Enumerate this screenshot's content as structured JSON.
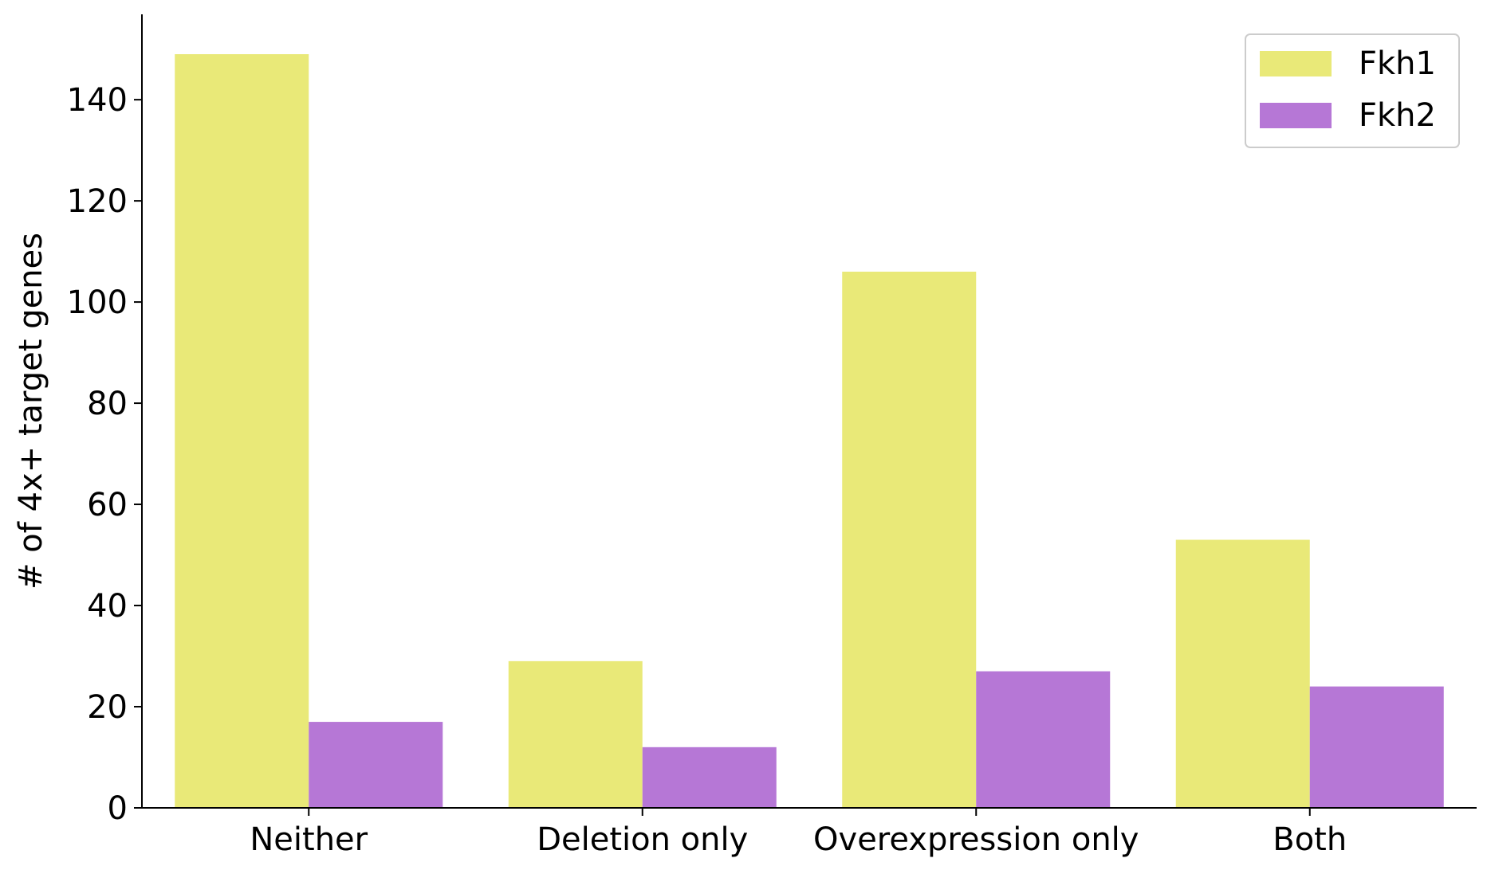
{
  "chart_data": {
    "type": "bar",
    "categories": [
      "Neither",
      "Deletion only",
      "Overexpression only",
      "Both"
    ],
    "series": [
      {
        "name": "Fkh1",
        "values": [
          149,
          29,
          106,
          53
        ],
        "color": "#e9e978"
      },
      {
        "name": "Fkh2",
        "values": [
          17,
          12,
          27,
          24
        ],
        "color": "#b677d6"
      }
    ],
    "title": "",
    "xlabel": "",
    "ylabel": "# of 4x+ target genes",
    "ylim": [
      0,
      157
    ],
    "yticks": [
      0,
      20,
      40,
      60,
      80,
      100,
      120,
      140
    ],
    "grid": false,
    "legend_position": "top-right"
  }
}
